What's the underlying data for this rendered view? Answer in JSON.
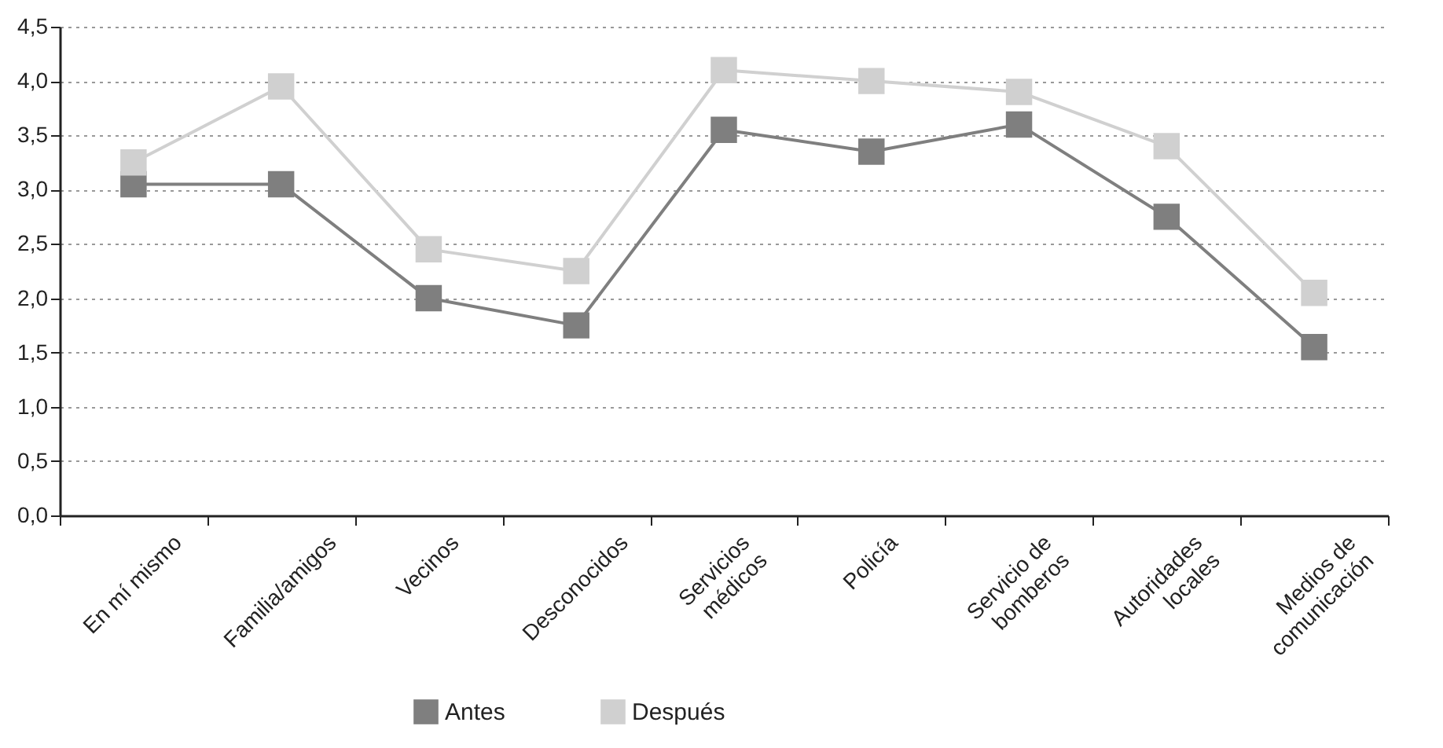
{
  "chart_data": {
    "type": "line",
    "categories": [
      "En mí mismo",
      "Familia/amigos",
      "Vecinos",
      "Desconocidos",
      "Servicios\nmédicos",
      "Policía",
      "Servicio de\nbomberos",
      "Autoridades\nlocales",
      "Medios de\ncomunicación"
    ],
    "series": [
      {
        "name": "Antes",
        "color": "#7f7f7f",
        "values": [
          3.05,
          3.05,
          2.0,
          1.75,
          3.55,
          3.35,
          3.6,
          2.75,
          1.55
        ]
      },
      {
        "name": "Después",
        "color": "#d0d0d0",
        "values": [
          3.25,
          3.95,
          2.45,
          2.25,
          4.1,
          4.0,
          3.9,
          3.4,
          2.05
        ]
      }
    ],
    "ylim": [
      0,
      4.5
    ],
    "yticks": [
      {
        "value": 0,
        "label": "0,0"
      },
      {
        "value": 0.5,
        "label": "0,5"
      },
      {
        "value": 1,
        "label": "1,0"
      },
      {
        "value": 1.5,
        "label": "1,5"
      },
      {
        "value": 2,
        "label": "2,0"
      },
      {
        "value": 2.5,
        "label": "2,5"
      },
      {
        "value": 3,
        "label": "3,0"
      },
      {
        "value": 3.5,
        "label": "3,5"
      },
      {
        "value": 4,
        "label": "4,0"
      },
      {
        "value": 4.5,
        "label": "4,5"
      }
    ],
    "grid": "y",
    "legend": "bottom",
    "marker": "square",
    "line_style": "solid"
  }
}
